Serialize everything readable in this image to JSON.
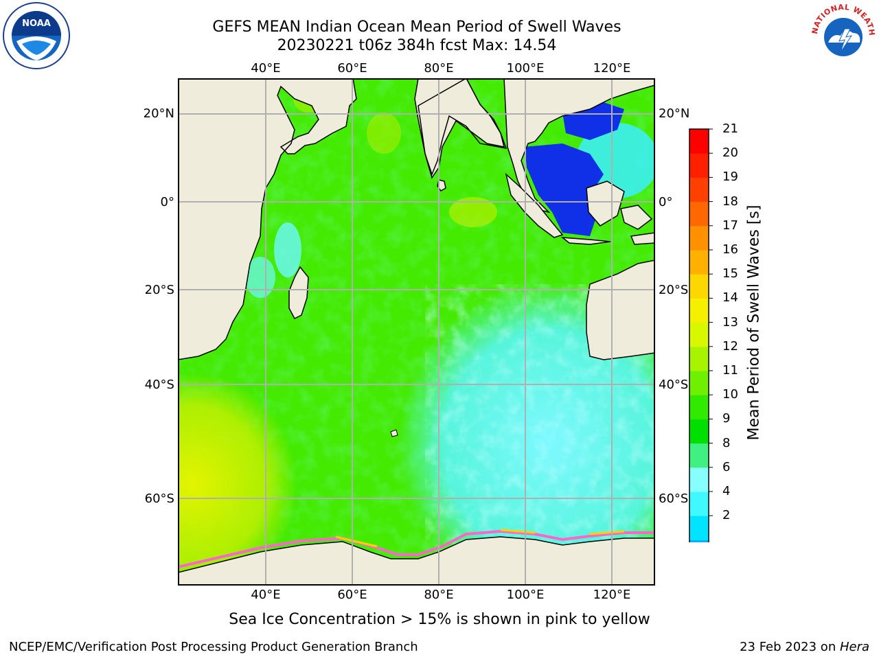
{
  "title_line1": "GEFS MEAN Indian Ocean Mean Period of Swell Waves",
  "title_line2": "20230221 t06z 384h fcst   Max: 14.54",
  "logos": {
    "left": "noaa-logo",
    "left_text": "NOAA",
    "right": "nws-logo",
    "right_text": "NATIONAL WEATHER SERVICE"
  },
  "map": {
    "lon_labels": [
      "40°E",
      "60°E",
      "80°E",
      "100°E",
      "120°E"
    ],
    "lat_labels": [
      "20°N",
      "0°",
      "20°S",
      "40°S",
      "60°S"
    ],
    "extent": {
      "lon": [
        20,
        130
      ],
      "lat": [
        -74,
        27
      ]
    },
    "colors": {
      "land": "#efecdc",
      "grid": "#b0b0b0",
      "coast": "#000000"
    }
  },
  "colorbar": {
    "label": "Mean Period of Swell Waves [s]",
    "ticks": [
      "21",
      "20",
      "19",
      "18",
      "17",
      "16",
      "15",
      "14",
      "13",
      "12",
      "11",
      "10",
      "9",
      "8",
      "6",
      "4",
      "2"
    ],
    "colors": [
      "#0010ff",
      "#0050ff",
      "#00b0ff",
      "#00e4ff",
      "#40f8ff",
      "#88ffff",
      "#40f080",
      "#00e000",
      "#30ea00",
      "#6ef000",
      "#a8f400",
      "#d8f800",
      "#f4f000",
      "#fcd800",
      "#ffb000",
      "#ff9000",
      "#ff6800",
      "#ff4000",
      "#ff2000",
      "#ff0000"
    ]
  },
  "sea_ice_note": "Sea Ice Concentration > 15% is shown in pink to yellow",
  "footer": {
    "left": "NCEP/EMC/Verification Post Processing Product Generation Branch",
    "date": "23 Feb 2023 on ",
    "host": "Hera"
  }
}
